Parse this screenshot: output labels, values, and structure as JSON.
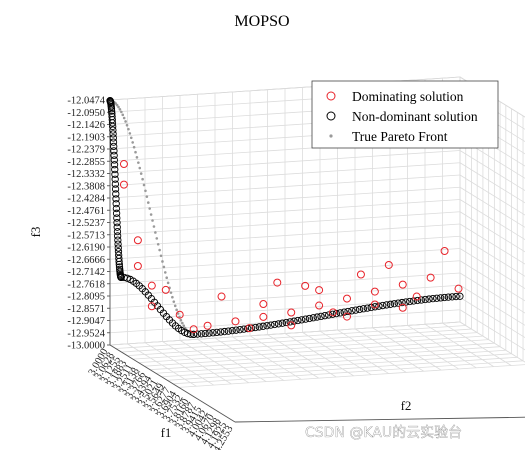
{
  "chart_data": {
    "type": "scatter",
    "title": "MOPSO",
    "xlabel": "f1",
    "ylabel": "f2",
    "zlabel": "f3",
    "f1_ticks": [
      "3.0000",
      "3.0628",
      "3.1255",
      "3.1883",
      "3.2511",
      "3.3138",
      "3.3766",
      "3.4394",
      "3.5021",
      "3.5649",
      "3.6277",
      "3.6904",
      "3.7532",
      "3.8160",
      "3.8787",
      "3.9415",
      "4.0042",
      "4.0670",
      "4.1298",
      "4.1925",
      "4.2553"
    ],
    "f2_ticks": [],
    "f3_ticks": [
      "-12.0474",
      "-12.0950",
      "-12.1426",
      "-12.1903",
      "-12.2379",
      "-12.2855",
      "-12.3332",
      "-12.3808",
      "-12.4284",
      "-12.4761",
      "-12.5237",
      "-12.5713",
      "-12.6190",
      "-12.6666",
      "-12.7142",
      "-12.7618",
      "-12.8095",
      "-12.8571",
      "-12.9047",
      "-12.9524",
      "-13.0000"
    ],
    "f3_lim": [
      -13.0,
      -12.0474
    ],
    "grid": true,
    "legend_position": "top-right",
    "legend": [
      {
        "label": "Dominating solution",
        "marker": "circle-open",
        "color": "#e8232a"
      },
      {
        "label": "Non-dominant solution",
        "marker": "circle-open",
        "color": "#000000"
      },
      {
        "label": "True Pareto Front",
        "marker": "dot",
        "color": "#9a9a9a"
      }
    ],
    "series": [
      {
        "name": "Dominating solution",
        "color": "#e8232a",
        "points": [
          [
            3.05,
            -12.3
          ],
          [
            3.05,
            -12.38
          ],
          [
            3.1,
            -12.6
          ],
          [
            3.1,
            -12.7
          ],
          [
            3.15,
            -12.78
          ],
          [
            3.2,
            -12.8
          ],
          [
            3.15,
            -12.86
          ],
          [
            3.25,
            -12.9
          ],
          [
            3.35,
            -12.95
          ],
          [
            3.45,
            -12.94
          ],
          [
            3.55,
            -12.93
          ],
          [
            3.65,
            -12.92
          ],
          [
            3.75,
            -12.9
          ],
          [
            3.85,
            -12.88
          ],
          [
            3.95,
            -12.86
          ],
          [
            4.05,
            -12.84
          ],
          [
            4.15,
            -12.82
          ],
          [
            3.4,
            -12.84
          ],
          [
            3.6,
            -12.8
          ],
          [
            3.7,
            -12.82
          ],
          [
            3.9,
            -12.79
          ],
          [
            4.0,
            -12.76
          ],
          [
            4.2,
            -12.72
          ],
          [
            3.3,
            -12.96
          ],
          [
            3.5,
            -12.97
          ],
          [
            3.8,
            -12.93
          ],
          [
            4.1,
            -12.89
          ],
          [
            4.25,
            -12.87
          ],
          [
            3.55,
            -12.88
          ],
          [
            3.75,
            -12.84
          ],
          [
            3.95,
            -12.91
          ],
          [
            4.05,
            -12.93
          ],
          [
            3.85,
            -12.95
          ],
          [
            3.65,
            -12.97
          ]
        ]
      },
      {
        "name": "Non-dominant solution",
        "color": "#000000",
        "curves": [
          {
            "from": [
              3.0,
              -12.05
            ],
            "to": [
              3.04,
              -12.74
            ],
            "count": 55
          },
          {
            "from": [
              3.04,
              -12.74
            ],
            "to": [
              3.3,
              -12.98
            ],
            "count": 25
          },
          {
            "from": [
              3.3,
              -12.98
            ],
            "to": [
              4.255,
              -12.9
            ],
            "count": 70
          }
        ]
      },
      {
        "name": "True Pareto Front",
        "color": "#9a9a9a",
        "curves": [
          {
            "from": [
              3.0,
              -12.05
            ],
            "to": [
              3.3,
              -12.98
            ],
            "count": 60
          },
          {
            "from": [
              3.3,
              -12.98
            ],
            "to": [
              4.255,
              -12.9
            ],
            "count": 60
          }
        ]
      }
    ]
  },
  "watermark": "CSDN @KAU的云实验台"
}
